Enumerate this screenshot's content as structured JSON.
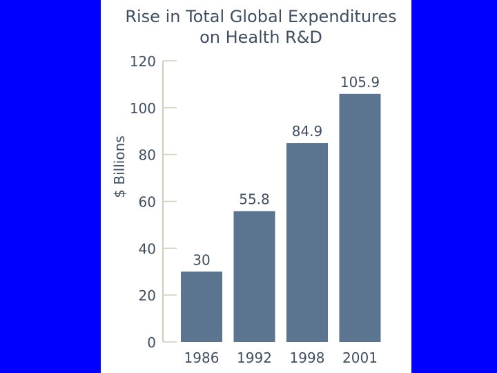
{
  "colors": {
    "background": "#0000ff",
    "panel": "#ffffff",
    "bar": "#5b7490",
    "text": "#3f4f60",
    "axis": "#c9d2bc"
  },
  "chart_data": {
    "type": "bar",
    "title_lines": [
      "Rise in Total Global Expenditures",
      "on Health R&D"
    ],
    "ylabel": "$ Billions",
    "xlabel": "",
    "categories": [
      "1986",
      "1992",
      "1998",
      "2001"
    ],
    "values": [
      30,
      55.8,
      84.9,
      105.9
    ],
    "value_labels": [
      "30",
      "55.8",
      "84.9",
      "105.9"
    ],
    "ylim": [
      0,
      120
    ],
    "yticks": [
      0,
      20,
      40,
      60,
      80,
      100,
      120
    ],
    "grid": false,
    "legend": "none"
  }
}
